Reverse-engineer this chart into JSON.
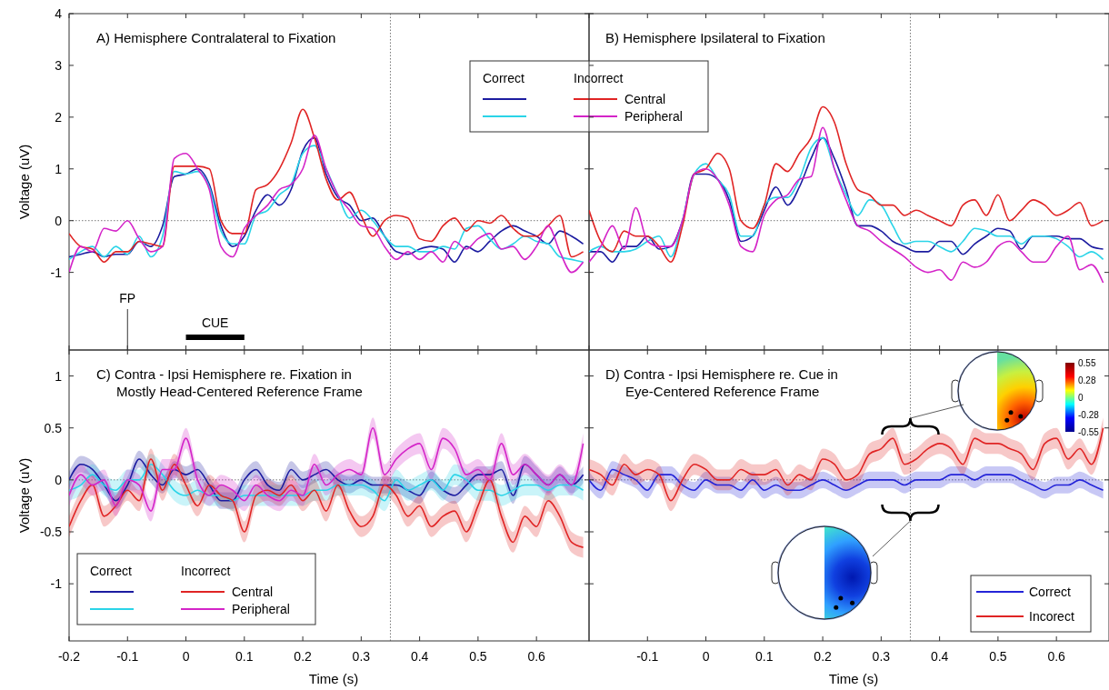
{
  "chart_data": [
    {
      "type": "line",
      "title": "A) Hemisphere Contralateral to Fixation",
      "ylabel": "Voltage (uV)",
      "xlim": [
        -0.2,
        0.69
      ],
      "ylim": [
        -2.5,
        4
      ],
      "xticks": [
        -0.2,
        -0.1,
        0,
        0.1,
        0.2,
        0.3,
        0.4,
        0.5,
        0.6
      ],
      "yticks": [
        -1,
        0,
        1,
        2,
        3,
        4
      ],
      "tick_labels": "y",
      "legend": "top right",
      "annotations": [
        "Correct",
        "Incorrect",
        "CUE"
      ],
      "ref_lines": [
        {
          "axis": "y",
          "value": 0,
          "line_style": "dotted",
          "color": "#555555"
        },
        {
          "axis": "x",
          "value": 0.35,
          "line_style": "dotted",
          "color": "#555555"
        },
        {
          "axis": "x",
          "value": -0.1,
          "label": "FP",
          "line_style": "solid",
          "color": "#000000"
        }
      ],
      "x": [
        -0.2,
        -0.18,
        -0.16,
        -0.14,
        -0.12,
        -0.1,
        -0.08,
        -0.06,
        -0.04,
        -0.02,
        0,
        0.02,
        0.04,
        0.06,
        0.08,
        0.1,
        0.12,
        0.14,
        0.16,
        0.18,
        0.2,
        0.22,
        0.24,
        0.26,
        0.28,
        0.3,
        0.32,
        0.34,
        0.36,
        0.38,
        0.4,
        0.42,
        0.44,
        0.46,
        0.48,
        0.5,
        0.52,
        0.54,
        0.56,
        0.58,
        0.6,
        0.62,
        0.64,
        0.66,
        0.68
      ],
      "series": [
        {
          "color": "#1c1ca0",
          "values": [
            -0.7,
            -0.65,
            -0.6,
            -0.7,
            -0.65,
            -0.65,
            -0.4,
            -0.5,
            -0.1,
            0.85,
            0.9,
            1.0,
            0.7,
            -0.1,
            -0.5,
            -0.3,
            0.2,
            0.5,
            0.3,
            0.6,
            1.35,
            1.6,
            0.9,
            0.45,
            0.3,
            0.0,
            0.05,
            -0.3,
            -0.6,
            -0.65,
            -0.55,
            -0.5,
            -0.55,
            -0.8,
            -0.5,
            -0.6,
            -0.4,
            -0.2,
            -0.1,
            -0.2,
            -0.3,
            -0.45,
            -0.2,
            -0.3,
            -0.45
          ]
        },
        {
          "color": "#2ad4e8",
          "values": [
            -0.75,
            -0.6,
            -0.5,
            -0.7,
            -0.5,
            -0.65,
            -0.3,
            -0.7,
            -0.3,
            0.95,
            0.9,
            0.95,
            0.65,
            -0.2,
            -0.45,
            -0.45,
            0.1,
            0.2,
            0.5,
            0.7,
            1.3,
            1.45,
            1.0,
            0.5,
            0.05,
            0.2,
            0.0,
            -0.3,
            -0.5,
            -0.5,
            -0.6,
            -0.6,
            -0.5,
            -0.55,
            -0.15,
            -0.1,
            -0.35,
            -0.55,
            -0.45,
            -0.3,
            -0.4,
            -0.45,
            -0.7,
            -0.75,
            -0.8
          ]
        },
        {
          "name": "Central",
          "color": "#e02424",
          "values": [
            -0.25,
            -0.5,
            -0.55,
            -0.8,
            -0.6,
            -0.6,
            -0.4,
            -0.45,
            -0.5,
            1.05,
            1.05,
            1.05,
            1.0,
            0.0,
            -0.25,
            -0.25,
            0.6,
            0.7,
            1.0,
            1.5,
            2.15,
            1.6,
            0.8,
            0.4,
            0.55,
            0.1,
            -0.3,
            0.0,
            0.1,
            0.05,
            -0.35,
            -0.4,
            -0.1,
            0.05,
            -0.2,
            0.0,
            -0.05,
            0.1,
            -0.15,
            -0.3,
            -0.3,
            -0.1,
            0.1,
            -0.7,
            -0.6
          ]
        },
        {
          "name": "Peripheral",
          "color": "#d424c8",
          "values": [
            -1.0,
            -0.5,
            -0.6,
            -0.15,
            -0.2,
            0.0,
            -0.35,
            -0.6,
            -0.5,
            1.2,
            1.3,
            1.0,
            0.6,
            -0.5,
            -0.7,
            -0.15,
            0.1,
            0.3,
            0.6,
            0.7,
            1.0,
            1.65,
            1.0,
            0.5,
            0.2,
            -0.1,
            -0.15,
            -0.5,
            -0.75,
            -0.6,
            -0.75,
            -0.6,
            -0.8,
            -0.4,
            -0.55,
            -0.35,
            -0.25,
            -0.55,
            -0.5,
            -0.75,
            -0.5,
            -0.1,
            -0.6,
            -1.0,
            -0.8
          ]
        }
      ]
    },
    {
      "type": "line",
      "title": "B) Hemisphere Ipsilateral to Fixation",
      "xlim": [
        -0.2,
        0.69
      ],
      "ylim": [
        -2.5,
        4
      ],
      "xticks": [
        -0.2,
        -0.1,
        0,
        0.1,
        0.2,
        0.3,
        0.4,
        0.5,
        0.6
      ],
      "yticks": [
        -1,
        0,
        1,
        2,
        3,
        4
      ],
      "tick_labels": false,
      "ref_lines": [
        {
          "axis": "y",
          "value": 0,
          "line_style": "dotted",
          "color": "#555555"
        },
        {
          "axis": "x",
          "value": 0.35,
          "line_style": "dotted",
          "color": "#555555"
        }
      ],
      "x": [
        -0.2,
        -0.18,
        -0.16,
        -0.14,
        -0.12,
        -0.1,
        -0.08,
        -0.06,
        -0.04,
        -0.02,
        0,
        0.02,
        0.04,
        0.06,
        0.08,
        0.1,
        0.12,
        0.14,
        0.16,
        0.18,
        0.2,
        0.22,
        0.24,
        0.26,
        0.28,
        0.3,
        0.32,
        0.34,
        0.36,
        0.38,
        0.4,
        0.42,
        0.44,
        0.46,
        0.48,
        0.5,
        0.52,
        0.54,
        0.56,
        0.58,
        0.6,
        0.62,
        0.64,
        0.66,
        0.68
      ],
      "series": [
        {
          "color": "#1c1ca0",
          "values": [
            -0.6,
            -0.6,
            -0.8,
            -0.5,
            -0.5,
            -0.3,
            -0.55,
            -0.5,
            0.0,
            0.9,
            0.9,
            0.8,
            0.4,
            -0.4,
            -0.3,
            0.2,
            0.65,
            0.3,
            0.65,
            1.2,
            1.6,
            1.2,
            0.6,
            -0.1,
            -0.1,
            -0.2,
            -0.4,
            -0.5,
            -0.6,
            -0.6,
            -0.4,
            -0.4,
            -0.65,
            -0.45,
            -0.3,
            -0.15,
            -0.2,
            -0.55,
            -0.3,
            -0.3,
            -0.3,
            -0.35,
            -0.35,
            -0.5,
            -0.55
          ]
        },
        {
          "color": "#2ad4e8",
          "values": [
            -0.6,
            -0.5,
            -0.6,
            -0.6,
            -0.55,
            -0.4,
            -0.3,
            -0.7,
            0.0,
            0.9,
            1.1,
            0.8,
            0.5,
            -0.3,
            -0.3,
            0.3,
            0.45,
            0.45,
            0.8,
            1.4,
            1.6,
            1.0,
            0.5,
            0.1,
            0.4,
            0.3,
            -0.1,
            -0.45,
            -0.4,
            -0.4,
            -0.5,
            -0.6,
            -0.4,
            -0.15,
            -0.2,
            -0.3,
            -0.3,
            -0.45,
            -0.3,
            -0.3,
            -0.35,
            -0.5,
            -0.7,
            -0.6,
            -0.75
          ]
        },
        {
          "color": "#e02424",
          "values": [
            0.2,
            -0.4,
            -0.6,
            -0.2,
            -0.3,
            -0.3,
            -0.5,
            -0.8,
            -0.1,
            0.9,
            1.0,
            1.3,
            1.0,
            0.0,
            -0.15,
            0.3,
            1.1,
            0.95,
            1.3,
            1.6,
            2.2,
            1.9,
            1.1,
            0.6,
            0.5,
            0.3,
            0.3,
            0.1,
            0.2,
            0.1,
            0.0,
            -0.1,
            0.3,
            0.4,
            0.1,
            0.5,
            0.0,
            0.2,
            0.4,
            0.3,
            0.1,
            0.2,
            0.35,
            -0.1,
            0.0
          ]
        },
        {
          "color": "#d424c8",
          "values": [
            -0.8,
            -0.5,
            -0.1,
            -0.55,
            0.25,
            -0.4,
            -0.5,
            -0.5,
            0.0,
            0.9,
            1.0,
            0.8,
            0.3,
            -0.5,
            -0.6,
            0.1,
            0.4,
            0.5,
            0.8,
            0.85,
            1.8,
            1.0,
            0.4,
            -0.1,
            -0.2,
            -0.4,
            -0.55,
            -0.7,
            -0.9,
            -1.0,
            -0.95,
            -1.15,
            -0.8,
            -0.9,
            -0.8,
            -0.5,
            -0.4,
            -0.6,
            -0.8,
            -0.8,
            -0.5,
            -0.3,
            -0.95,
            -0.85,
            -1.2
          ]
        }
      ]
    },
    {
      "type": "line",
      "title": "C) Contra - Ipsi Hemisphere re. Fixation in\nMostly Head-Centered Reference Frame",
      "xlabel": "Time (s)",
      "ylabel": "Voltage (uV)",
      "xlim": [
        -0.2,
        0.69
      ],
      "ylim": [
        -1.55,
        1.25
      ],
      "xticks": [
        -0.2,
        -0.1,
        0,
        0.1,
        0.2,
        0.3,
        0.4,
        0.5,
        0.6
      ],
      "yticks": [
        -1,
        -0.5,
        0,
        0.5,
        1
      ],
      "legend": "bottom left",
      "annotations": [
        "Correct",
        "Incorrect"
      ],
      "ref_lines": [
        {
          "axis": "y",
          "value": 0,
          "line_style": "dotted",
          "color": "#555555"
        },
        {
          "axis": "x",
          "value": 0.35,
          "line_style": "dotted",
          "color": "#555555"
        }
      ],
      "x": [
        -0.2,
        -0.18,
        -0.16,
        -0.14,
        -0.12,
        -0.1,
        -0.08,
        -0.06,
        -0.04,
        -0.02,
        0,
        0.02,
        0.04,
        0.06,
        0.08,
        0.1,
        0.12,
        0.14,
        0.16,
        0.18,
        0.2,
        0.22,
        0.24,
        0.26,
        0.28,
        0.3,
        0.32,
        0.34,
        0.36,
        0.38,
        0.4,
        0.42,
        0.44,
        0.46,
        0.48,
        0.5,
        0.52,
        0.54,
        0.56,
        0.58,
        0.6,
        0.62,
        0.64,
        0.66,
        0.68
      ],
      "series": [
        {
          "color": "#1c1ca0",
          "values": [
            0,
            0.15,
            0.1,
            -0.05,
            -0.2,
            -0.05,
            0.2,
            0.05,
            -0.05,
            0.1,
            0.05,
            0.1,
            -0.05,
            -0.2,
            -0.2,
            0,
            0.1,
            -0.05,
            -0.1,
            0.1,
            0,
            0.05,
            0.1,
            0,
            -0.05,
            0,
            -0.05,
            -0.05,
            -0.05,
            -0.1,
            -0.15,
            0,
            -0.1,
            -0.15,
            -0.05,
            0.05,
            0.05,
            0.1,
            -0.15,
            0.15,
            0.05,
            -0.05,
            0.05,
            -0.05,
            0.05
          ],
          "lower": [
            -0.08,
            0.07,
            0.02,
            -0.13,
            -0.28,
            -0.13,
            0.12,
            -0.03,
            -0.13,
            0.02,
            -0.03,
            0.02,
            -0.13,
            -0.28,
            -0.28,
            -0.08,
            0.02,
            -0.13,
            -0.18,
            0.02,
            -0.08,
            -0.03,
            0.02,
            -0.08,
            -0.13,
            -0.08,
            -0.13,
            -0.13,
            -0.13,
            -0.18,
            -0.23,
            -0.08,
            -0.18,
            -0.23,
            -0.13,
            -0.03,
            -0.03,
            0.02,
            -0.23,
            0.07,
            -0.03,
            -0.13,
            -0.03,
            -0.13,
            -0.03
          ],
          "upper": [
            0.08,
            0.23,
            0.18,
            0.03,
            -0.12,
            0.03,
            0.28,
            0.13,
            0.03,
            0.18,
            0.13,
            0.18,
            0.03,
            -0.12,
            -0.12,
            0.08,
            0.18,
            0.03,
            -0.02,
            0.18,
            0.08,
            0.13,
            0.18,
            0.08,
            0.03,
            0.08,
            0.03,
            0.03,
            0.03,
            -0.02,
            -0.07,
            0.08,
            -0.02,
            -0.07,
            0.03,
            0.13,
            0.13,
            0.18,
            -0.07,
            0.23,
            0.13,
            0.03,
            0.13,
            0.03,
            0.13
          ]
        },
        {
          "color": "#2ad4e8",
          "values": [
            -0.1,
            -0.05,
            0.05,
            -0.05,
            -0.1,
            0,
            0,
            0.15,
            0.05,
            -0.1,
            -0.15,
            -0.1,
            -0.15,
            -0.15,
            -0.2,
            -0.15,
            -0.15,
            -0.15,
            -0.15,
            -0.15,
            -0.15,
            -0.1,
            -0.1,
            -0.05,
            -0.05,
            -0.05,
            -0.1,
            -0.2,
            0,
            -0.1,
            -0.05,
            0,
            -0.1,
            0.05,
            0,
            -0.1,
            -0.1,
            -0.15,
            -0.1,
            -0.05,
            -0.05,
            -0.1,
            -0.05,
            -0.05,
            -0.1
          ],
          "lower": [
            -0.2,
            -0.15,
            -0.05,
            -0.15,
            -0.2,
            -0.1,
            -0.1,
            0.05,
            -0.05,
            -0.2,
            -0.25,
            -0.2,
            -0.25,
            -0.25,
            -0.3,
            -0.25,
            -0.25,
            -0.25,
            -0.25,
            -0.25,
            -0.25,
            -0.2,
            -0.2,
            -0.15,
            -0.15,
            -0.15,
            -0.2,
            -0.3,
            -0.1,
            -0.2,
            -0.15,
            -0.1,
            -0.2,
            -0.05,
            -0.1,
            -0.2,
            -0.2,
            -0.25,
            -0.2,
            -0.15,
            -0.15,
            -0.2,
            -0.15,
            -0.15,
            -0.2
          ],
          "upper": [
            0,
            0.05,
            0.15,
            0.05,
            0,
            0.1,
            0.1,
            0.25,
            0.15,
            0,
            -0.05,
            0,
            -0.05,
            -0.05,
            -0.1,
            -0.05,
            -0.05,
            -0.05,
            -0.05,
            -0.05,
            -0.05,
            0,
            0,
            0.05,
            0.05,
            0.05,
            0,
            -0.1,
            0.1,
            0,
            0.05,
            0.1,
            0,
            0.15,
            0.1,
            0,
            0,
            -0.05,
            0,
            0.05,
            0.05,
            0,
            0.05,
            0.05,
            0
          ]
        },
        {
          "name": "Central",
          "color": "#e02424",
          "values": [
            -0.45,
            -0.2,
            -0.05,
            -0.35,
            -0.25,
            -0.1,
            -0.2,
            0.2,
            -0.1,
            0.15,
            -0.05,
            -0.25,
            -0.05,
            -0.15,
            -0.2,
            -0.5,
            -0.15,
            -0.1,
            -0.15,
            -0.05,
            -0.2,
            -0.1,
            -0.3,
            -0.05,
            -0.3,
            -0.45,
            -0.35,
            -0.05,
            -0.15,
            -0.35,
            -0.25,
            -0.45,
            -0.35,
            -0.3,
            -0.5,
            -0.25,
            0,
            -0.35,
            -0.6,
            -0.35,
            -0.45,
            -0.2,
            -0.35,
            -0.6,
            -0.65
          ],
          "lower": [
            -0.55,
            -0.3,
            -0.15,
            -0.45,
            -0.35,
            -0.2,
            -0.3,
            0.1,
            -0.2,
            0.05,
            -0.15,
            -0.35,
            -0.15,
            -0.25,
            -0.3,
            -0.6,
            -0.25,
            -0.2,
            -0.25,
            -0.15,
            -0.3,
            -0.2,
            -0.4,
            -0.15,
            -0.4,
            -0.55,
            -0.45,
            -0.15,
            -0.25,
            -0.45,
            -0.35,
            -0.55,
            -0.45,
            -0.4,
            -0.6,
            -0.35,
            -0.1,
            -0.45,
            -0.7,
            -0.45,
            -0.55,
            -0.3,
            -0.45,
            -0.7,
            -0.75
          ],
          "upper": [
            -0.35,
            -0.1,
            0.05,
            -0.25,
            -0.15,
            0,
            -0.1,
            0.3,
            0,
            0.25,
            0.05,
            -0.15,
            0.05,
            -0.05,
            -0.1,
            -0.4,
            -0.05,
            0,
            -0.05,
            0.05,
            -0.1,
            0,
            -0.2,
            0.05,
            -0.2,
            -0.35,
            -0.25,
            0.05,
            -0.05,
            -0.25,
            -0.15,
            -0.35,
            -0.25,
            -0.2,
            -0.4,
            -0.15,
            0.1,
            -0.25,
            -0.5,
            -0.25,
            -0.35,
            -0.1,
            -0.25,
            -0.5,
            -0.55
          ]
        },
        {
          "name": "Peripheral",
          "color": "#d424c8",
          "values": [
            -0.15,
            0.05,
            -0.05,
            0,
            -0.25,
            0,
            -0.05,
            -0.3,
            0.1,
            0.1,
            0.4,
            0,
            -0.15,
            -0.05,
            -0.1,
            -0.2,
            -0.05,
            -0.15,
            -0.2,
            -0.1,
            -0.15,
            0.15,
            -0.05,
            0.05,
            0.1,
            0.05,
            0.5,
            0.05,
            0.2,
            0.3,
            0.35,
            0.1,
            0.4,
            0.3,
            0.05,
            0.1,
            0,
            0.35,
            0.05,
            0.15,
            0.05,
            -0.05,
            0.05,
            -0.05,
            0.35
          ],
          "lower": [
            -0.25,
            -0.05,
            -0.15,
            -0.1,
            -0.35,
            -0.1,
            -0.15,
            -0.4,
            0,
            0,
            0.3,
            -0.1,
            -0.25,
            -0.15,
            -0.2,
            -0.3,
            -0.15,
            -0.25,
            -0.3,
            -0.2,
            -0.25,
            0.05,
            -0.15,
            -0.05,
            0,
            -0.05,
            0.4,
            -0.05,
            0.1,
            0.2,
            0.25,
            0,
            0.3,
            0.2,
            -0.05,
            0,
            -0.1,
            0.25,
            -0.05,
            0.05,
            -0.05,
            -0.15,
            -0.05,
            -0.15,
            0.25
          ],
          "upper": [
            -0.05,
            0.15,
            0.05,
            0.1,
            -0.15,
            0.1,
            0.05,
            -0.2,
            0.2,
            0.2,
            0.5,
            0.1,
            -0.05,
            0.05,
            0,
            -0.1,
            0.05,
            -0.05,
            -0.1,
            0,
            -0.05,
            0.25,
            0.05,
            0.15,
            0.2,
            0.15,
            0.6,
            0.15,
            0.3,
            0.4,
            0.45,
            0.2,
            0.5,
            0.4,
            0.15,
            0.2,
            0.1,
            0.45,
            0.15,
            0.25,
            0.15,
            0.05,
            0.15,
            0.05,
            0.45
          ]
        }
      ]
    },
    {
      "type": "line",
      "title": "D) Contra - Ipsi Hemisphere re. Cue in\nEye-Centered Reference Frame",
      "xlabel": "Time (s)",
      "xlim": [
        -0.2,
        0.69
      ],
      "ylim": [
        -1.55,
        1.25
      ],
      "xticks": [
        -0.1,
        0,
        0.1,
        0.2,
        0.3,
        0.4,
        0.5,
        0.6
      ],
      "yticks": [
        -1,
        -0.5,
        0,
        0.5,
        1
      ],
      "tick_labels": "x",
      "legend": "bottom right",
      "annotations": [
        "0.55",
        "0.28",
        "0",
        "-0.28",
        "-0.55"
      ],
      "ref_lines": [
        {
          "axis": "y",
          "value": 0,
          "line_style": "dotted",
          "color": "#555555"
        },
        {
          "axis": "x",
          "value": 0.35,
          "line_style": "dotted",
          "color": "#555555"
        }
      ],
      "x": [
        -0.2,
        -0.18,
        -0.16,
        -0.14,
        -0.12,
        -0.1,
        -0.08,
        -0.06,
        -0.04,
        -0.02,
        0,
        0.02,
        0.04,
        0.06,
        0.08,
        0.1,
        0.12,
        0.14,
        0.16,
        0.18,
        0.2,
        0.22,
        0.24,
        0.26,
        0.28,
        0.3,
        0.32,
        0.34,
        0.36,
        0.38,
        0.4,
        0.42,
        0.44,
        0.46,
        0.48,
        0.5,
        0.52,
        0.54,
        0.56,
        0.58,
        0.6,
        0.62,
        0.64,
        0.66,
        0.68
      ],
      "series": [
        {
          "name": "Correct",
          "color": "#2424d8",
          "values": [
            0,
            -0.1,
            0.1,
            0.05,
            0,
            -0.1,
            0.05,
            0.05,
            -0.05,
            -0.1,
            0,
            -0.05,
            -0.05,
            -0.1,
            0,
            -0.1,
            -0.05,
            -0.1,
            -0.1,
            -0.05,
            0,
            -0.05,
            -0.1,
            -0.05,
            0,
            0,
            0,
            -0.05,
            0,
            0,
            0,
            0.05,
            0.05,
            0,
            0.05,
            0.05,
            0.05,
            0,
            -0.05,
            -0.1,
            -0.05,
            -0.05,
            0,
            -0.05,
            -0.1
          ],
          "lower": [
            -0.08,
            -0.18,
            0.02,
            -0.03,
            -0.08,
            -0.18,
            -0.03,
            -0.03,
            -0.13,
            -0.18,
            -0.08,
            -0.13,
            -0.13,
            -0.18,
            -0.08,
            -0.18,
            -0.13,
            -0.18,
            -0.18,
            -0.13,
            -0.08,
            -0.13,
            -0.18,
            -0.13,
            -0.08,
            -0.08,
            -0.08,
            -0.13,
            -0.08,
            -0.08,
            -0.08,
            -0.03,
            -0.03,
            -0.08,
            -0.03,
            -0.03,
            -0.03,
            -0.08,
            -0.13,
            -0.18,
            -0.13,
            -0.13,
            -0.08,
            -0.13,
            -0.18
          ],
          "upper": [
            0.08,
            -0.02,
            0.18,
            0.13,
            0.08,
            -0.02,
            0.13,
            0.13,
            0.03,
            -0.02,
            0.08,
            0.03,
            0.03,
            -0.02,
            0.08,
            -0.02,
            0.03,
            -0.02,
            -0.02,
            0.03,
            0.08,
            0.03,
            -0.02,
            0.03,
            0.08,
            0.08,
            0.08,
            0.03,
            0.08,
            0.08,
            0.08,
            0.13,
            0.13,
            0.08,
            0.13,
            0.13,
            0.13,
            0.08,
            0.03,
            -0.02,
            0.03,
            0.03,
            0.08,
            0.03,
            -0.02
          ]
        },
        {
          "name": "Incorect",
          "color": "#e02424",
          "values": [
            0.1,
            0.05,
            -0.05,
            0.15,
            0.05,
            0.1,
            0.05,
            -0.2,
            0,
            0.15,
            0.1,
            0,
            0,
            0.1,
            0.05,
            0.05,
            0.1,
            -0.05,
            0.05,
            0,
            0.2,
            0.15,
            0,
            0.05,
            0.25,
            0.3,
            0.4,
            0.15,
            0.2,
            0.3,
            0.35,
            0.3,
            0.15,
            0.4,
            0.35,
            0.35,
            0.3,
            0.25,
            0.1,
            0.35,
            0.4,
            0.2,
            0.3,
            0.15,
            0.5
          ],
          "lower": [
            0,
            -0.05,
            -0.15,
            0.05,
            -0.05,
            0,
            -0.05,
            -0.3,
            -0.1,
            0.05,
            0,
            -0.1,
            -0.1,
            0,
            -0.05,
            -0.05,
            0,
            -0.15,
            -0.05,
            -0.1,
            0.1,
            0.05,
            -0.1,
            -0.05,
            0.15,
            0.2,
            0.3,
            0.05,
            0.1,
            0.2,
            0.25,
            0.2,
            0.05,
            0.3,
            0.25,
            0.25,
            0.2,
            0.15,
            0,
            0.25,
            0.3,
            0.1,
            0.2,
            0.05,
            0.4
          ],
          "upper": [
            0.2,
            0.15,
            0.05,
            0.25,
            0.15,
            0.2,
            0.15,
            -0.1,
            0.1,
            0.25,
            0.2,
            0.1,
            0.1,
            0.2,
            0.15,
            0.15,
            0.2,
            0.05,
            0.15,
            0.1,
            0.3,
            0.25,
            0.1,
            0.15,
            0.35,
            0.4,
            0.5,
            0.25,
            0.3,
            0.4,
            0.45,
            0.4,
            0.25,
            0.5,
            0.45,
            0.45,
            0.4,
            0.35,
            0.2,
            0.45,
            0.5,
            0.3,
            0.4,
            0.25,
            0.6
          ]
        }
      ]
    }
  ]
}
